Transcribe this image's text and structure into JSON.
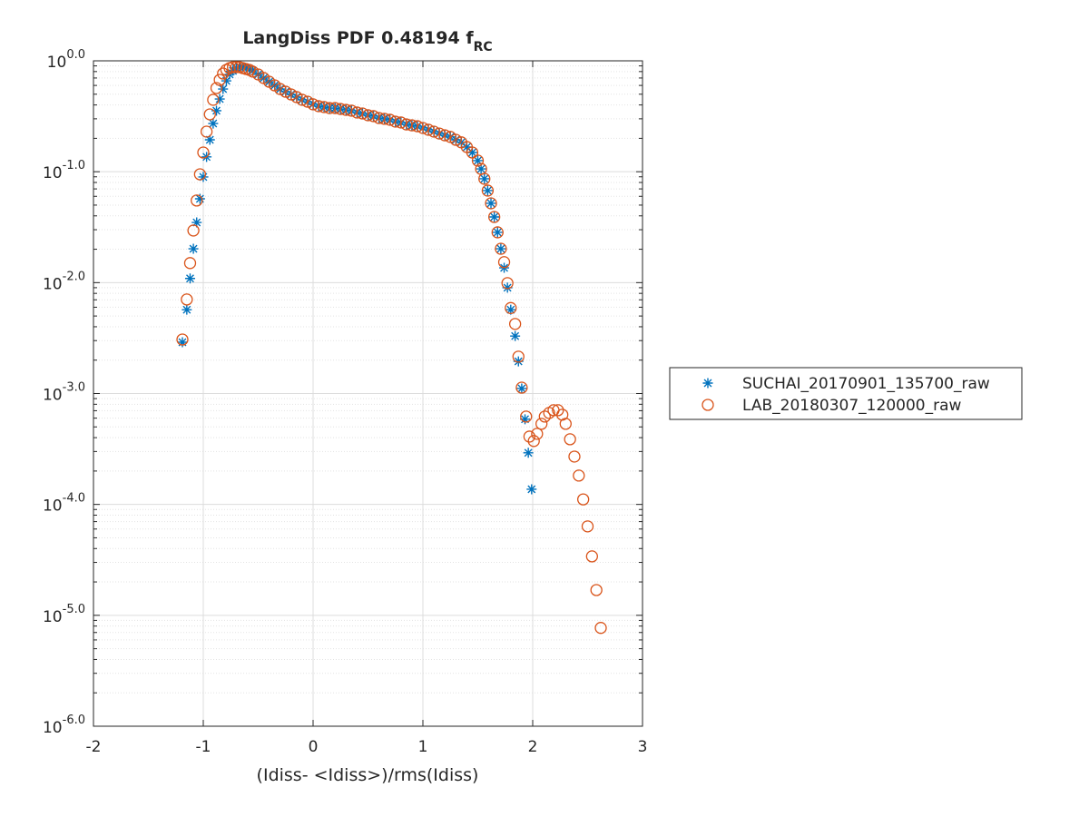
{
  "chart_data": {
    "type": "scatter",
    "title": "LangDiss PDF 0.48194 f",
    "title_subscript": "RC",
    "x_label": "(Idiss- <Idiss>)/rms(Idiss)",
    "xlim": [
      -2,
      3
    ],
    "xticks": [
      -2,
      -1,
      0,
      1,
      2,
      3
    ],
    "ylim": [
      1e-06,
      1
    ],
    "yscale": "log",
    "yticks": [
      {
        "value": 1,
        "label": "10",
        "exponent": "0.0"
      },
      {
        "value": 0.1,
        "label": "10",
        "exponent": "-1.0"
      },
      {
        "value": 0.01,
        "label": "10",
        "exponent": "-2.0"
      },
      {
        "value": 0.001,
        "label": "10",
        "exponent": "-3.0"
      },
      {
        "value": 0.0001,
        "label": "10",
        "exponent": "-4.0"
      },
      {
        "value": 1e-05,
        "label": "10",
        "exponent": "-5.0"
      },
      {
        "value": 1e-06,
        "label": "10",
        "exponent": "-6.0"
      }
    ],
    "grid": true,
    "legend_position": "eastoutside",
    "series": [
      {
        "name": "SUCHAI_20170901_135700_raw",
        "color": "#0072bd",
        "marker": "asterisk",
        "x": [
          -1.19,
          -1.15,
          -1.12,
          -1.09,
          -1.06,
          -1.03,
          -1.0,
          -0.97,
          -0.94,
          -0.91,
          -0.88,
          -0.85,
          -0.82,
          -0.79,
          -0.76,
          -0.73,
          -0.7,
          -0.67,
          -0.64,
          -0.61,
          -0.58,
          -0.55,
          -0.5,
          -0.45,
          -0.4,
          -0.35,
          -0.3,
          -0.25,
          -0.2,
          -0.15,
          -0.1,
          -0.05,
          0.0,
          0.05,
          0.1,
          0.15,
          0.2,
          0.25,
          0.3,
          0.35,
          0.4,
          0.45,
          0.5,
          0.55,
          0.6,
          0.65,
          0.7,
          0.75,
          0.8,
          0.85,
          0.9,
          0.95,
          1.0,
          1.05,
          1.1,
          1.15,
          1.2,
          1.25,
          1.3,
          1.35,
          1.4,
          1.45,
          1.5,
          1.53,
          1.56,
          1.59,
          1.62,
          1.65,
          1.68,
          1.71,
          1.74,
          1.77,
          1.8,
          1.84,
          1.87,
          1.9,
          1.93,
          1.96,
          1.99
        ],
        "values": [
          0.0029,
          0.0057,
          0.0109,
          0.0202,
          0.0349,
          0.057,
          0.0897,
          0.136,
          0.194,
          0.272,
          0.355,
          0.453,
          0.557,
          0.66,
          0.754,
          0.813,
          0.86,
          0.877,
          0.877,
          0.86,
          0.844,
          0.813,
          0.754,
          0.7,
          0.648,
          0.601,
          0.557,
          0.527,
          0.498,
          0.471,
          0.445,
          0.428,
          0.405,
          0.39,
          0.383,
          0.375,
          0.375,
          0.368,
          0.361,
          0.355,
          0.342,
          0.335,
          0.323,
          0.317,
          0.305,
          0.3,
          0.294,
          0.283,
          0.278,
          0.267,
          0.262,
          0.257,
          0.248,
          0.239,
          0.23,
          0.221,
          0.213,
          0.206,
          0.194,
          0.184,
          0.167,
          0.149,
          0.126,
          0.106,
          0.0863,
          0.0676,
          0.0519,
          0.0391,
          0.0284,
          0.0202,
          0.0136,
          0.009,
          0.0057,
          0.0033,
          0.00195,
          0.00111,
          0.000586,
          0.000292,
          0.000137
        ]
      },
      {
        "name": "LAB_20180307_120000_raw",
        "color": "#d95319",
        "marker": "circle",
        "x": [
          -1.19,
          -1.15,
          -1.12,
          -1.09,
          -1.06,
          -1.03,
          -1.0,
          -0.97,
          -0.94,
          -0.91,
          -0.88,
          -0.85,
          -0.82,
          -0.79,
          -0.76,
          -0.73,
          -0.7,
          -0.67,
          -0.64,
          -0.61,
          -0.58,
          -0.55,
          -0.5,
          -0.45,
          -0.4,
          -0.35,
          -0.3,
          -0.25,
          -0.2,
          -0.15,
          -0.1,
          -0.05,
          0.0,
          0.05,
          0.1,
          0.15,
          0.2,
          0.25,
          0.3,
          0.35,
          0.4,
          0.45,
          0.5,
          0.55,
          0.6,
          0.65,
          0.7,
          0.75,
          0.8,
          0.85,
          0.9,
          0.95,
          1.0,
          1.05,
          1.1,
          1.15,
          1.2,
          1.25,
          1.3,
          1.35,
          1.4,
          1.45,
          1.5,
          1.53,
          1.56,
          1.59,
          1.62,
          1.65,
          1.68,
          1.71,
          1.74,
          1.77,
          1.8,
          1.84,
          1.87,
          1.9,
          1.94,
          1.97,
          2.01,
          2.04,
          2.08,
          2.11,
          2.15,
          2.19,
          2.23,
          2.27,
          2.3,
          2.34,
          2.38,
          2.42,
          2.46,
          2.5,
          2.54,
          2.58,
          2.62
        ],
        "values": [
          0.00307,
          0.00705,
          0.015,
          0.0295,
          0.055,
          0.0948,
          0.149,
          0.23,
          0.329,
          0.445,
          0.568,
          0.673,
          0.768,
          0.828,
          0.86,
          0.877,
          0.877,
          0.877,
          0.86,
          0.844,
          0.828,
          0.8,
          0.754,
          0.7,
          0.648,
          0.601,
          0.557,
          0.527,
          0.498,
          0.471,
          0.445,
          0.428,
          0.405,
          0.39,
          0.383,
          0.375,
          0.375,
          0.368,
          0.361,
          0.355,
          0.342,
          0.335,
          0.323,
          0.317,
          0.305,
          0.3,
          0.294,
          0.283,
          0.278,
          0.267,
          0.262,
          0.257,
          0.248,
          0.239,
          0.23,
          0.221,
          0.213,
          0.206,
          0.194,
          0.184,
          0.167,
          0.149,
          0.126,
          0.106,
          0.0863,
          0.0676,
          0.0519,
          0.0391,
          0.0284,
          0.0202,
          0.0153,
          0.0099,
          0.0059,
          0.00424,
          0.00215,
          0.00113,
          0.00062,
          0.000409,
          0.000373,
          0.000433,
          0.000533,
          0.00062,
          0.000668,
          0.000707,
          0.000707,
          0.000644,
          0.000533,
          0.000387,
          0.00027,
          0.000182,
          0.000111,
          6.34e-05,
          3.4e-05,
          1.69e-05,
          7.7e-06
        ]
      }
    ]
  }
}
